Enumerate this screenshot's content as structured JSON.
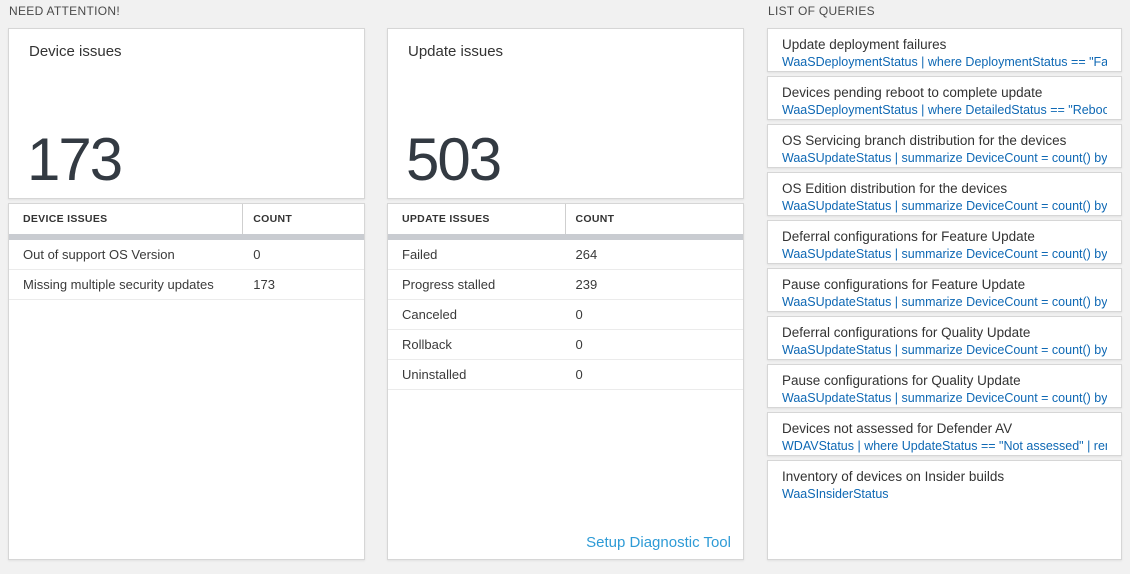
{
  "sections": {
    "need_attention": {
      "label": "NEED ATTENTION!"
    },
    "list_of_queries": {
      "label": "LIST OF QUERIES"
    }
  },
  "device_card": {
    "title": "Device issues",
    "big_number": "173",
    "table": {
      "col1_header": "DEVICE ISSUES",
      "col2_header": "COUNT",
      "rows": [
        {
          "label": "Out of support OS Version",
          "count": "0"
        },
        {
          "label": "Missing multiple security updates",
          "count": "173"
        }
      ]
    }
  },
  "update_card": {
    "title": "Update issues",
    "big_number": "503",
    "table": {
      "col1_header": "UPDATE ISSUES",
      "col2_header": "COUNT",
      "rows": [
        {
          "label": "Failed",
          "count": "264"
        },
        {
          "label": "Progress stalled",
          "count": "239"
        },
        {
          "label": "Canceled",
          "count": "0"
        },
        {
          "label": "Rollback",
          "count": "0"
        },
        {
          "label": "Uninstalled",
          "count": "0"
        }
      ]
    },
    "setup_link": "Setup Diagnostic Tool"
  },
  "queries": {
    "items": [
      {
        "title": "Update deployment failures",
        "query": "WaaSDeploymentStatus | where DeploymentStatus == \"Failed\" |..."
      },
      {
        "title": "Devices pending reboot to complete update",
        "query": "WaaSDeploymentStatus | where DetailedStatus == \"Reboot pend..."
      },
      {
        "title": "OS Servicing branch distribution for the devices",
        "query": "WaaSUpdateStatus | summarize DeviceCount = count() by OSSer..."
      },
      {
        "title": "OS Edition distribution for the devices",
        "query": "WaaSUpdateStatus | summarize DeviceCount = count() by OSEdit..."
      },
      {
        "title": "Deferral configurations for Feature Update",
        "query": "WaaSUpdateStatus | summarize DeviceCount = count() by Featur..."
      },
      {
        "title": "Pause configurations for Feature Update",
        "query": "WaaSUpdateStatus | summarize DeviceCount = count() by Featur..."
      },
      {
        "title": "Deferral configurations for Quality Update",
        "query": "WaaSUpdateStatus | summarize DeviceCount = count() by Qualit..."
      },
      {
        "title": "Pause configurations for Quality Update",
        "query": "WaaSUpdateStatus | summarize DeviceCount = count() by Qualit..."
      },
      {
        "title": "Devices not assessed for Defender AV",
        "query": "WDAVStatus | where UpdateStatus == \"Not assessed\" | render ta..."
      },
      {
        "title": "Inventory of devices on Insider builds",
        "query": "WaaSInsiderStatus"
      }
    ]
  },
  "colors": {
    "bg": "#f1f1f1",
    "query-link": "#0e68b4",
    "setup-link": "#2e9bd6",
    "bignum": "#333a42"
  }
}
